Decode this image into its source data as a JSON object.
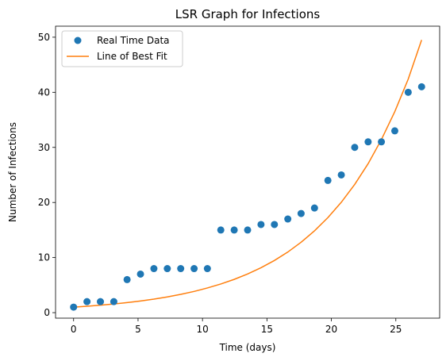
{
  "chart_data": {
    "type": "scatter",
    "title": "LSR Graph for Infections",
    "xlabel": "Time (days)",
    "ylabel": "Number of Infections",
    "xlim": [
      -1.4,
      28.4
    ],
    "ylim": [
      -1.0,
      52.0
    ],
    "x_ticks": [
      0,
      5,
      10,
      15,
      20,
      25
    ],
    "y_ticks": [
      0,
      10,
      20,
      30,
      40,
      50
    ],
    "grid": false,
    "legend_position": "upper-left",
    "series": [
      {
        "name": "Real Time Data",
        "kind": "scatter",
        "color": "#1f77b4",
        "x": [
          0,
          1.04,
          2.08,
          3.12,
          4.15,
          5.19,
          6.23,
          7.27,
          8.31,
          9.35,
          10.38,
          11.42,
          12.46,
          13.5,
          14.54,
          15.58,
          16.62,
          17.65,
          18.69,
          19.73,
          20.77,
          21.81,
          22.85,
          23.88,
          24.92,
          25.96,
          27
        ],
        "y": [
          1,
          2,
          2,
          2,
          6,
          7,
          8,
          8,
          8,
          8,
          8,
          15,
          15,
          15,
          16,
          16,
          17,
          18,
          19,
          24,
          25,
          30,
          31,
          31,
          33,
          40,
          41
        ]
      },
      {
        "name": "Line of Best Fit",
        "kind": "line",
        "color": "#ff7f0e",
        "x": [
          0,
          1.04,
          2.08,
          3.12,
          4.15,
          5.19,
          6.23,
          7.27,
          8.31,
          9.35,
          10.38,
          11.42,
          12.46,
          13.5,
          14.54,
          15.58,
          16.62,
          17.65,
          18.69,
          19.73,
          20.77,
          21.81,
          22.85,
          23.88,
          24.92,
          25.96,
          27
        ],
        "y": [
          1.0,
          1.16,
          1.35,
          1.57,
          1.82,
          2.12,
          2.46,
          2.86,
          3.32,
          3.85,
          4.48,
          5.2,
          6.04,
          7.02,
          8.15,
          9.47,
          11.0,
          12.78,
          14.85,
          17.25,
          20.04,
          23.28,
          27.04,
          31.41,
          36.49,
          42.39,
          49.5
        ]
      }
    ]
  }
}
